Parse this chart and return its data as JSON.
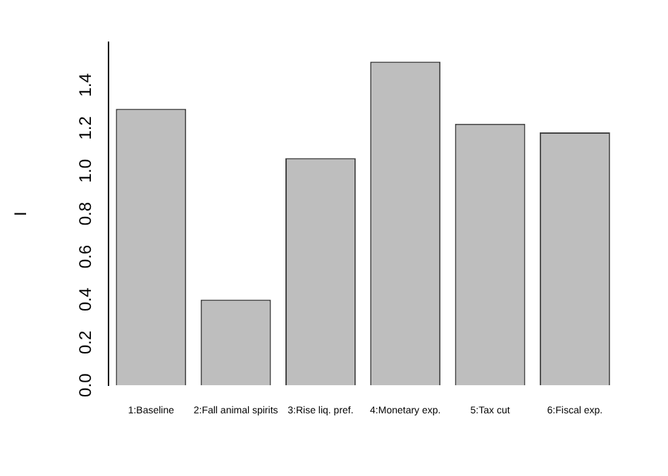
{
  "chart_data": {
    "type": "bar",
    "ylabel": "I",
    "categories": [
      "1:Baseline",
      "2:Fall animal spirits",
      "3:Rise liq. pref.",
      "4:Monetary exp.",
      "5:Tax cut",
      "6:Fiscal exp."
    ],
    "values": [
      1.29,
      0.4,
      1.06,
      1.51,
      1.22,
      1.18
    ],
    "color": "#bebebe",
    "ylim": [
      0,
      1.6
    ],
    "yticks": [
      {
        "value": 0,
        "label": "0.0"
      },
      0.2,
      0.4,
      0.6,
      0.8,
      {
        "value": 1,
        "label": "1.0"
      },
      1.2,
      1.4
    ],
    "grid": false,
    "legend": false
  }
}
